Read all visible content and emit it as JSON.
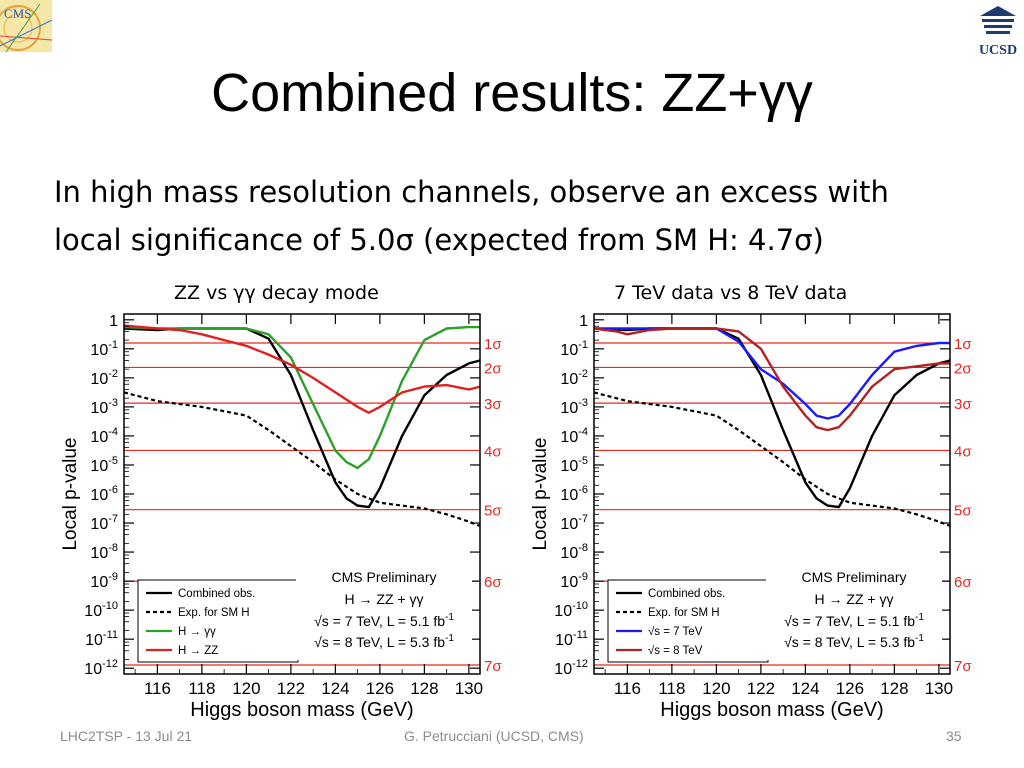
{
  "slide": {
    "title": "Combined results: ZZ+γγ",
    "body_line1": "In high mass resolution channels, observe an excess with",
    "body_line2": "local significance of 5.0σ  (expected from SM H: 4.7σ)",
    "logo_left_text": "CMS",
    "logo_right_text": "UCSD",
    "footer_left": "LHC2TSP - 13 Jul 21",
    "footer_center": "G. Petrucciani (UCSD, CMS)",
    "footer_right": "35"
  },
  "colors": {
    "black": "#000000",
    "green": "#2ca02c",
    "red": "#e02020",
    "blue": "#1a1aff",
    "darkred": "#b22222",
    "sigma": "#e8281e"
  },
  "chart_data": [
    {
      "type": "line",
      "panel_title": "ZZ vs γγ decay mode",
      "xlabel": "Higgs boson mass (GeV)",
      "ylabel": "Local p-value",
      "xlim": [
        114.5,
        130.5
      ],
      "ylog_exponent_range": [
        -12.2,
        0.2
      ],
      "x_ticks": [
        116,
        118,
        120,
        122,
        124,
        126,
        128,
        130
      ],
      "y_ticks": [
        {
          "exp": 0,
          "base": "1",
          "sup": ""
        },
        {
          "exp": -1,
          "base": "10",
          "sup": "-1"
        },
        {
          "exp": -2,
          "base": "10",
          "sup": "-2"
        },
        {
          "exp": -3,
          "base": "10",
          "sup": "-3"
        },
        {
          "exp": -4,
          "base": "10",
          "sup": "-4"
        },
        {
          "exp": -5,
          "base": "10",
          "sup": "-5"
        },
        {
          "exp": -6,
          "base": "10",
          "sup": "-6"
        },
        {
          "exp": -7,
          "base": "10",
          "sup": "-7"
        },
        {
          "exp": -8,
          "base": "10",
          "sup": "-8"
        },
        {
          "exp": -9,
          "base": "10",
          "sup": "-9"
        },
        {
          "exp": -10,
          "base": "10",
          "sup": "-10"
        },
        {
          "exp": -11,
          "base": "10",
          "sup": "-11"
        },
        {
          "exp": -12,
          "base": "10",
          "sup": "-12"
        }
      ],
      "sigma_lines": [
        {
          "label": "1σ",
          "log10p": -0.8
        },
        {
          "label": "2σ",
          "log10p": -1.64
        },
        {
          "label": "3σ",
          "log10p": -2.87
        },
        {
          "label": "4σ",
          "log10p": -4.5
        },
        {
          "label": "5σ",
          "log10p": -6.54
        },
        {
          "label": "6σ",
          "log10p": -9.0
        },
        {
          "label": "7σ",
          "log10p": -11.89
        }
      ],
      "annotation": {
        "line1": "CMS Preliminary",
        "line2": "H → ZZ + γγ",
        "line3": "√s = 7 TeV, L = 5.1 fb",
        "line4": "√s = 8 TeV, L = 5.3 fb",
        "sup": "-1"
      },
      "series": [
        {
          "name": "Combined obs.",
          "color": "#000000",
          "dash": false,
          "x": [
            114.5,
            116,
            117,
            118,
            119,
            120,
            121,
            122,
            123,
            124,
            124.5,
            125,
            125.5,
            126,
            127,
            128,
            129,
            130,
            130.5
          ],
          "log10p": [
            -0.3,
            -0.35,
            -0.3,
            -0.3,
            -0.3,
            -0.3,
            -0.65,
            -1.9,
            -3.8,
            -5.6,
            -6.15,
            -6.4,
            -6.45,
            -5.8,
            -4.0,
            -2.6,
            -1.9,
            -1.5,
            -1.4
          ]
        },
        {
          "name": "Exp. for SM H",
          "color": "#000000",
          "dash": true,
          "x": [
            114.5,
            116,
            118,
            120,
            121,
            122,
            123,
            124,
            125,
            126,
            127,
            128,
            129,
            130,
            130.5
          ],
          "log10p": [
            -2.5,
            -2.8,
            -3.0,
            -3.3,
            -3.8,
            -4.35,
            -4.9,
            -5.5,
            -6.0,
            -6.3,
            -6.4,
            -6.5,
            -6.7,
            -6.95,
            -7.1
          ]
        },
        {
          "name": "H → γγ",
          "color": "#2ca02c",
          "dash": false,
          "x": [
            114.5,
            116,
            118,
            119,
            120,
            121,
            122,
            123,
            124,
            124.5,
            125,
            125.5,
            126,
            127,
            128,
            129,
            130,
            130.5
          ],
          "log10p": [
            -0.25,
            -0.3,
            -0.3,
            -0.3,
            -0.3,
            -0.5,
            -1.3,
            -2.9,
            -4.5,
            -4.9,
            -5.1,
            -4.8,
            -4.0,
            -2.1,
            -0.7,
            -0.3,
            -0.25,
            -0.25
          ]
        },
        {
          "name": "H → ZZ",
          "color": "#e02020",
          "dash": false,
          "x": [
            114.5,
            116,
            117,
            118,
            119,
            120,
            121,
            122,
            123,
            124,
            125,
            125.5,
            126,
            127,
            128,
            129,
            130,
            130.5
          ],
          "log10p": [
            -0.2,
            -0.3,
            -0.35,
            -0.5,
            -0.7,
            -0.9,
            -1.2,
            -1.55,
            -2.0,
            -2.5,
            -3.0,
            -3.2,
            -3.0,
            -2.5,
            -2.3,
            -2.25,
            -2.4,
            -2.3
          ]
        }
      ]
    },
    {
      "type": "line",
      "panel_title": "7 TeV data vs 8 TeV data",
      "xlabel": "Higgs boson mass (GeV)",
      "ylabel": "Local p-value",
      "xlim": [
        114.5,
        130.5
      ],
      "ylog_exponent_range": [
        -12.2,
        0.2
      ],
      "x_ticks": [
        116,
        118,
        120,
        122,
        124,
        126,
        128,
        130
      ],
      "y_ticks": [
        {
          "exp": 0,
          "base": "1",
          "sup": ""
        },
        {
          "exp": -1,
          "base": "10",
          "sup": "-1"
        },
        {
          "exp": -2,
          "base": "10",
          "sup": "-2"
        },
        {
          "exp": -3,
          "base": "10",
          "sup": "-3"
        },
        {
          "exp": -4,
          "base": "10",
          "sup": "-4"
        },
        {
          "exp": -5,
          "base": "10",
          "sup": "-5"
        },
        {
          "exp": -6,
          "base": "10",
          "sup": "-6"
        },
        {
          "exp": -7,
          "base": "10",
          "sup": "-7"
        },
        {
          "exp": -8,
          "base": "10",
          "sup": "-8"
        },
        {
          "exp": -9,
          "base": "10",
          "sup": "-9"
        },
        {
          "exp": -10,
          "base": "10",
          "sup": "-10"
        },
        {
          "exp": -11,
          "base": "10",
          "sup": "-11"
        },
        {
          "exp": -12,
          "base": "10",
          "sup": "-12"
        }
      ],
      "sigma_lines": [
        {
          "label": "1σ",
          "log10p": -0.8
        },
        {
          "label": "2σ",
          "log10p": -1.64
        },
        {
          "label": "3σ",
          "log10p": -2.87
        },
        {
          "label": "4σ",
          "log10p": -4.5
        },
        {
          "label": "5σ",
          "log10p": -6.54
        },
        {
          "label": "6σ",
          "log10p": -9.0
        },
        {
          "label": "7σ",
          "log10p": -11.89
        }
      ],
      "annotation": {
        "line1": "CMS Preliminary",
        "line2": "H → ZZ + γγ",
        "line3": "√s = 7 TeV, L = 5.1 fb",
        "line4": "√s = 8 TeV, L = 5.3 fb",
        "sup": "-1"
      },
      "series": [
        {
          "name": "Combined  obs.",
          "color": "#000000",
          "dash": false,
          "x": [
            114.5,
            116,
            117,
            118,
            119,
            120,
            121,
            122,
            123,
            124,
            124.5,
            125,
            125.5,
            126,
            127,
            128,
            129,
            130,
            130.5
          ],
          "log10p": [
            -0.3,
            -0.35,
            -0.3,
            -0.3,
            -0.3,
            -0.3,
            -0.65,
            -1.9,
            -3.8,
            -5.6,
            -6.15,
            -6.4,
            -6.45,
            -5.8,
            -4.0,
            -2.6,
            -1.9,
            -1.5,
            -1.4
          ]
        },
        {
          "name": "Exp. for SM H",
          "color": "#000000",
          "dash": true,
          "x": [
            114.5,
            116,
            118,
            120,
            121,
            122,
            123,
            124,
            125,
            126,
            127,
            128,
            129,
            130,
            130.5
          ],
          "log10p": [
            -2.5,
            -2.8,
            -3.0,
            -3.3,
            -3.8,
            -4.35,
            -4.9,
            -5.5,
            -6.0,
            -6.3,
            -6.4,
            -6.5,
            -6.7,
            -6.95,
            -7.1
          ]
        },
        {
          "name": "√s = 7 TeV",
          "color": "#1a1aff",
          "dash": false,
          "x": [
            114.5,
            116,
            118,
            119,
            120,
            121,
            122,
            123,
            124,
            124.5,
            125,
            125.5,
            126,
            127,
            128,
            129,
            130,
            130.5
          ],
          "log10p": [
            -0.3,
            -0.3,
            -0.3,
            -0.3,
            -0.3,
            -0.75,
            -1.7,
            -2.2,
            -2.9,
            -3.3,
            -3.4,
            -3.3,
            -2.9,
            -1.9,
            -1.1,
            -0.9,
            -0.8,
            -0.8
          ]
        },
        {
          "name": "√s = 8 TeV",
          "color": "#b22222",
          "dash": false,
          "x": [
            114.5,
            115.5,
            116,
            117,
            118,
            119,
            120,
            121,
            122,
            123,
            124,
            124.5,
            125,
            125.5,
            126,
            127,
            128,
            129,
            130,
            130.5
          ],
          "log10p": [
            -0.3,
            -0.4,
            -0.5,
            -0.35,
            -0.3,
            -0.3,
            -0.3,
            -0.4,
            -1.0,
            -2.3,
            -3.3,
            -3.7,
            -3.8,
            -3.7,
            -3.3,
            -2.3,
            -1.7,
            -1.6,
            -1.5,
            -1.5
          ]
        }
      ]
    }
  ]
}
